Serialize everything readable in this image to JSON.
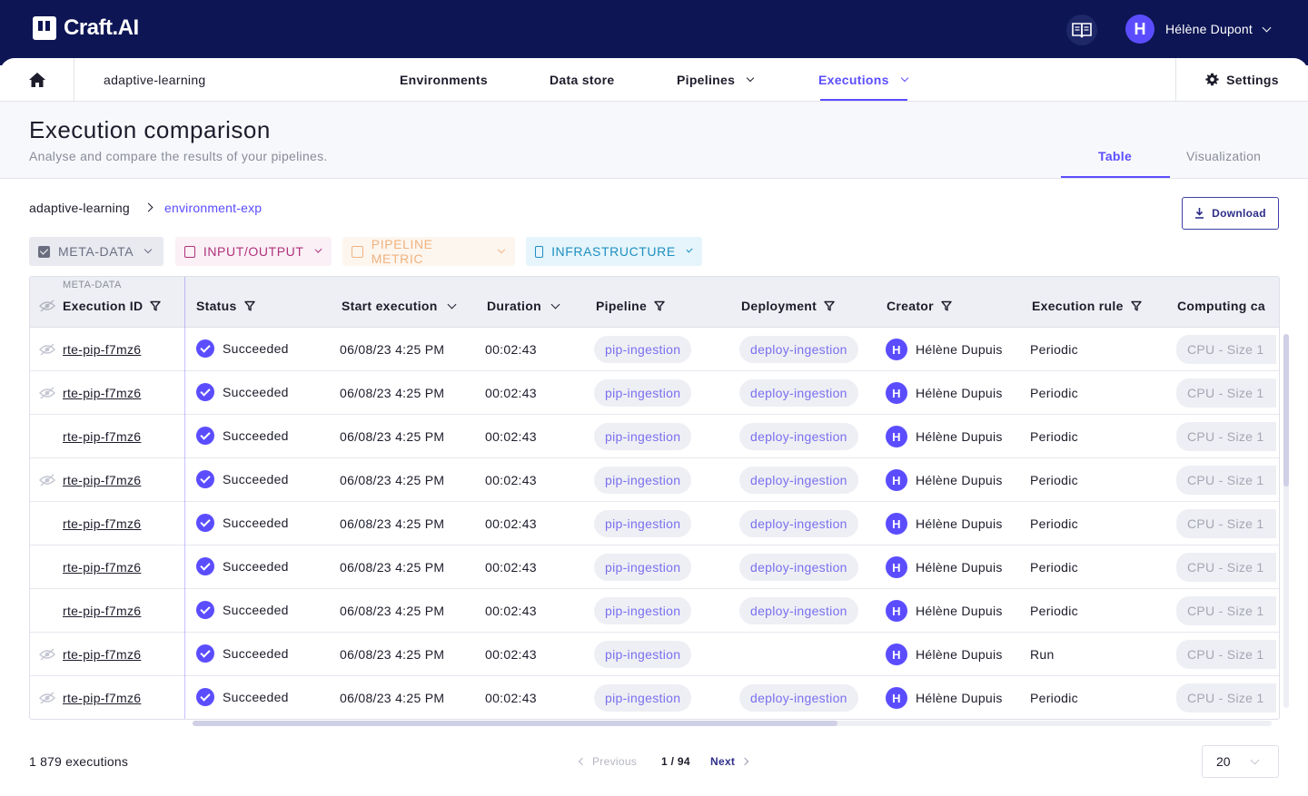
{
  "app": {
    "logo_text": "Craft.AI"
  },
  "user": {
    "initial": "H",
    "name": "Hélène Dupont"
  },
  "nav": {
    "project": "adaptive-learning",
    "items": [
      {
        "label": "Environments"
      },
      {
        "label": "Data store"
      },
      {
        "label": "Pipelines"
      },
      {
        "label": "Executions"
      }
    ],
    "active": "Executions",
    "settings_label": "Settings"
  },
  "page": {
    "title": "Execution comparison",
    "subtitle": "Analyse and compare the results of your pipelines.",
    "view_tabs": [
      {
        "label": "Table"
      },
      {
        "label": "Visualization"
      }
    ],
    "active_view": "Table"
  },
  "breadcrumb": {
    "project": "adaptive-learning",
    "environment": "environment-exp"
  },
  "download_label": "Download",
  "filters": [
    {
      "label": "META-DATA",
      "checked": true,
      "color": "#6b6e80"
    },
    {
      "label": "INPUT/OUTPUT",
      "checked": false,
      "color": "#b0317a"
    },
    {
      "label": "PIPELINE METRIC",
      "checked": false,
      "color": "#f0b27f"
    },
    {
      "label": "INFRASTRUCTURE",
      "checked": false,
      "color": "#1e8fc0"
    }
  ],
  "table": {
    "group_label": "META-DATA",
    "columns": [
      "Execution ID",
      "Status",
      "Start execution",
      "Duration",
      "Pipeline",
      "Deployment",
      "Creator",
      "Execution rule",
      "Computing ca"
    ],
    "rows": [
      {
        "hidden_icon": true,
        "id": "rte-pip-f7mz6",
        "status": "Succeeded",
        "start": "06/08/23 4:25 PM",
        "duration": "00:02:43",
        "pipeline": "pip-ingestion",
        "deployment": "deploy-ingestion",
        "creator_initial": "H",
        "creator": "Hélène Dupuis",
        "rule": "Periodic",
        "computing": "CPU - Size 1"
      },
      {
        "hidden_icon": true,
        "id": "rte-pip-f7mz6",
        "status": "Succeeded",
        "start": "06/08/23 4:25 PM",
        "duration": "00:02:43",
        "pipeline": "pip-ingestion",
        "deployment": "deploy-ingestion",
        "creator_initial": "H",
        "creator": "Hélène Dupuis",
        "rule": "Periodic",
        "computing": "CPU - Size 1"
      },
      {
        "hidden_icon": false,
        "id": "rte-pip-f7mz6",
        "status": "Succeeded",
        "start": "06/08/23 4:25 PM",
        "duration": "00:02:43",
        "pipeline": "pip-ingestion",
        "deployment": "deploy-ingestion",
        "creator_initial": "H",
        "creator": "Hélène Dupuis",
        "rule": "Periodic",
        "computing": "CPU - Size 1"
      },
      {
        "hidden_icon": true,
        "id": "rte-pip-f7mz6",
        "status": "Succeeded",
        "start": "06/08/23 4:25 PM",
        "duration": "00:02:43",
        "pipeline": "pip-ingestion",
        "deployment": "deploy-ingestion",
        "creator_initial": "H",
        "creator": "Hélène Dupuis",
        "rule": "Periodic",
        "computing": "CPU - Size 1"
      },
      {
        "hidden_icon": false,
        "id": "rte-pip-f7mz6",
        "status": "Succeeded",
        "start": "06/08/23 4:25 PM",
        "duration": "00:02:43",
        "pipeline": "pip-ingestion",
        "deployment": "deploy-ingestion",
        "creator_initial": "H",
        "creator": "Hélène Dupuis",
        "rule": "Periodic",
        "computing": "CPU - Size 1"
      },
      {
        "hidden_icon": false,
        "id": "rte-pip-f7mz6",
        "status": "Succeeded",
        "start": "06/08/23 4:25 PM",
        "duration": "00:02:43",
        "pipeline": "pip-ingestion",
        "deployment": "deploy-ingestion",
        "creator_initial": "H",
        "creator": "Hélène Dupuis",
        "rule": "Periodic",
        "computing": "CPU - Size 1"
      },
      {
        "hidden_icon": false,
        "id": "rte-pip-f7mz6",
        "status": "Succeeded",
        "start": "06/08/23 4:25 PM",
        "duration": "00:02:43",
        "pipeline": "pip-ingestion",
        "deployment": "deploy-ingestion",
        "creator_initial": "H",
        "creator": "Hélène Dupuis",
        "rule": "Periodic",
        "computing": "CPU - Size 1"
      },
      {
        "hidden_icon": true,
        "id": "rte-pip-f7mz6",
        "status": "Succeeded",
        "start": "06/08/23 4:25 PM",
        "duration": "00:02:43",
        "pipeline": "pip-ingestion",
        "deployment": "",
        "creator_initial": "H",
        "creator": "Hélène Dupuis",
        "rule": "Run",
        "computing": "CPU - Size 1"
      },
      {
        "hidden_icon": true,
        "id": "rte-pip-f7mz6",
        "status": "Succeeded",
        "start": "06/08/23 4:25 PM",
        "duration": "00:02:43",
        "pipeline": "pip-ingestion",
        "deployment": "deploy-ingestion",
        "creator_initial": "H",
        "creator": "Hélène Dupuis",
        "rule": "Periodic",
        "computing": "CPU - Size 1"
      }
    ]
  },
  "footer": {
    "total": "1 879 executions",
    "previous_label": "Previous",
    "page_indicator": "1 / 94",
    "next_label": "Next",
    "page_size": "20"
  },
  "colors": {
    "brand_dark": "#0d1554",
    "accent": "#5b4dff"
  }
}
